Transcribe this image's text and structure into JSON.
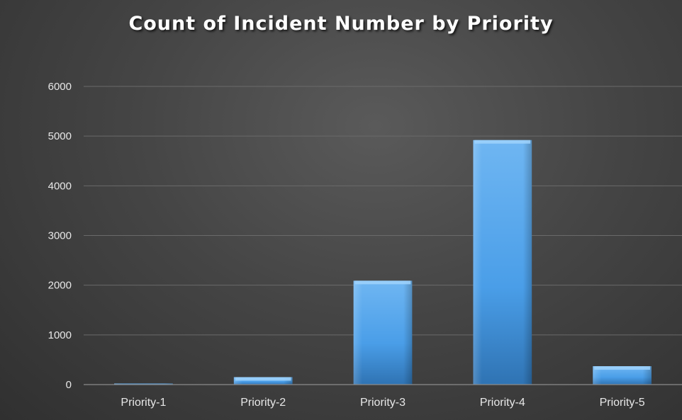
{
  "chart_data": {
    "type": "bar",
    "title": "Count of Incident Number by Priority",
    "xlabel": "",
    "ylabel": "",
    "categories": [
      "Priority-1",
      "Priority-2",
      "Priority-3",
      "Priority-4",
      "Priority-5"
    ],
    "values": [
      10,
      150,
      2090,
      4920,
      370
    ],
    "ylim": [
      0,
      6000
    ],
    "yticks": [
      0,
      1000,
      2000,
      3000,
      4000,
      5000,
      6000
    ],
    "grid": true,
    "legend": "none",
    "colors": {
      "bar": "#4a9ee8",
      "bar_light": "#6fb6f2",
      "bar_dark": "#2f73b3",
      "grid": "#6a6a6a",
      "axis": "#8a8a8a",
      "text": "#e8e8e8",
      "title": "#ffffff"
    }
  }
}
